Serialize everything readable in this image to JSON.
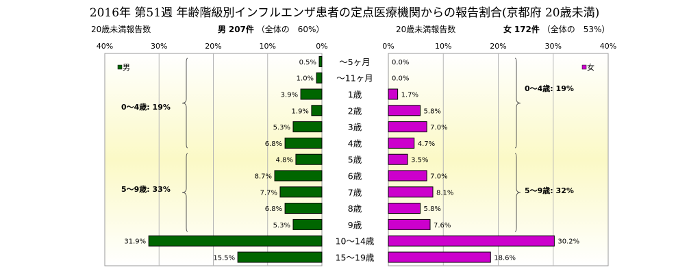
{
  "title": "2016年 第51週 年齢階級別インフルエンザ患者の定点医療機関からの報告割合(京都府 20歳未満)",
  "header": {
    "male_count_label": "20歳未満報告数",
    "male_sex": "男",
    "male_count": "207件",
    "male_share": "（全体の　60%）",
    "female_count_label": "20歳未満報告数",
    "female_sex": "女",
    "female_count": "172件",
    "female_share": "（全体の　53%）"
  },
  "chart_data": {
    "type": "bar",
    "orientation": "horizontal-population-pyramid",
    "categories": [
      "～5ヶ月",
      "～11ヶ月",
      "1歳",
      "2歳",
      "3歳",
      "4歳",
      "5歳",
      "6歳",
      "7歳",
      "8歳",
      "9歳",
      "10～14歳",
      "15～19歳"
    ],
    "series": [
      {
        "name": "男",
        "color": "#006600",
        "values": [
          0.5,
          1.0,
          3.9,
          1.9,
          5.3,
          6.8,
          4.8,
          8.7,
          7.7,
          6.8,
          5.3,
          31.9,
          15.5
        ],
        "labels": [
          "0.5%",
          "1.0%",
          "3.9%",
          "1.9%",
          "5.3%",
          "6.8%",
          "4.8%",
          "8.7%",
          "7.7%",
          "6.8%",
          "5.3%",
          "31.9%",
          "15.5%"
        ]
      },
      {
        "name": "女",
        "color": "#cc00cc",
        "values": [
          0.0,
          0.0,
          1.7,
          5.8,
          7.0,
          4.7,
          3.5,
          7.0,
          8.1,
          5.8,
          7.6,
          30.2,
          18.6
        ],
        "labels": [
          "0.0%",
          "0.0%",
          "1.7%",
          "5.8%",
          "7.0%",
          "4.7%",
          "3.5%",
          "7.0%",
          "8.1%",
          "5.8%",
          "7.6%",
          "30.2%",
          "18.6%"
        ]
      }
    ],
    "xlim": [
      0,
      40
    ],
    "ticks": [
      "40%",
      "30%",
      "20%",
      "10%",
      "0%",
      "0%",
      "10%",
      "20%",
      "30%",
      "40%"
    ],
    "grid": true,
    "legend_position": "top-outer-corners",
    "annotations": {
      "male": [
        "0～4歳: 19%",
        "5～9歳: 33%"
      ],
      "female": [
        "0～4歳: 19%",
        "5～9歳: 32%"
      ]
    }
  }
}
